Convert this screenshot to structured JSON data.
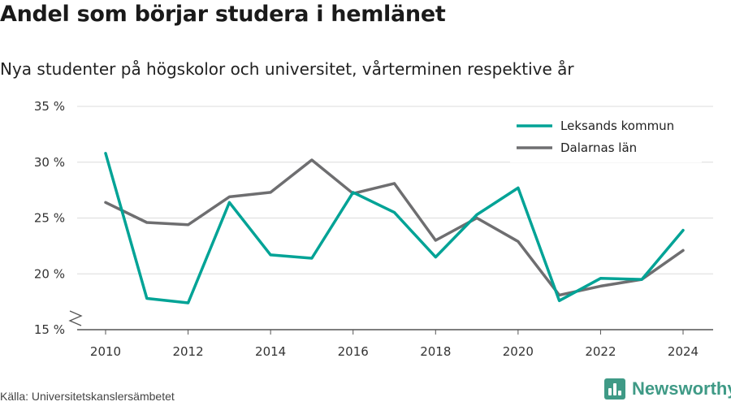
{
  "title": "Andel som börjar studera i hemlänet",
  "subtitle": "Nya studenter på högskolor och universitet, vårterminen respektive år",
  "source": "Källa: Universitetskanslersämbetet",
  "brand": {
    "name": "Newsworthy",
    "icon": "bar-chart-icon",
    "color": "#3f9a86"
  },
  "chart_data": {
    "type": "line",
    "x": [
      2010,
      2011,
      2012,
      2013,
      2014,
      2015,
      2016,
      2017,
      2018,
      2019,
      2020,
      2021,
      2022,
      2023,
      2024
    ],
    "series": [
      {
        "name": "Leksands kommun",
        "color": "#00a396",
        "values": [
          30.8,
          17.8,
          17.4,
          26.4,
          21.7,
          21.4,
          27.3,
          25.5,
          21.5,
          25.3,
          27.7,
          17.6,
          19.6,
          19.5,
          23.9
        ]
      },
      {
        "name": "Dalarnas län",
        "color": "#6e6e70",
        "values": [
          26.4,
          24.6,
          24.4,
          26.9,
          27.3,
          30.2,
          27.2,
          28.1,
          23.0,
          25.0,
          22.9,
          18.1,
          18.9,
          19.5,
          22.1
        ]
      }
    ],
    "ylim": [
      15,
      35
    ],
    "yticks": [
      15,
      20,
      25,
      30,
      35
    ],
    "ytick_labels": [
      "15 %",
      "20 %",
      "25 %",
      "30 %",
      "35 %"
    ],
    "xticks": [
      2010,
      2012,
      2014,
      2016,
      2018,
      2020,
      2022,
      2024
    ],
    "xtick_labels": [
      "2010",
      "2012",
      "2014",
      "2016",
      "2018",
      "2020",
      "2022",
      "2024"
    ],
    "grid": true,
    "axis_break": true,
    "legend_position": "top-right"
  }
}
